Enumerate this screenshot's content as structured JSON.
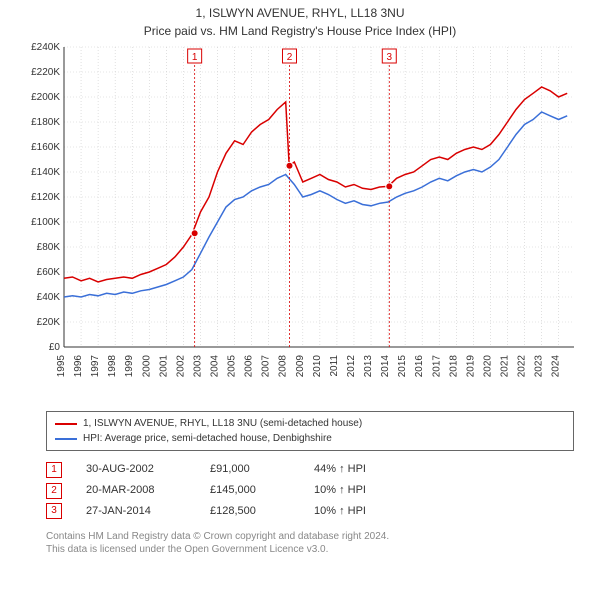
{
  "title": "1, ISLWYN AVENUE, RHYL, LL18 3NU",
  "subtitle": "Price paid vs. HM Land Registry's House Price Index (HPI)",
  "chart": {
    "type": "line",
    "background_color": "#ffffff",
    "grid_color": "#cccccc",
    "axis_color": "#333333",
    "y_axis": {
      "min": 0,
      "max": 240000,
      "tick_step": 20000,
      "tick_labels": [
        "£0",
        "£20K",
        "£40K",
        "£60K",
        "£80K",
        "£100K",
        "£120K",
        "£140K",
        "£160K",
        "£180K",
        "£200K",
        "£220K",
        "£240K"
      ]
    },
    "x_axis": {
      "min": 1995,
      "max": 2024,
      "tick_labels": [
        "1995",
        "1996",
        "1997",
        "1998",
        "1999",
        "2000",
        "2001",
        "2002",
        "2003",
        "2004",
        "2005",
        "2006",
        "2007",
        "2008",
        "2009",
        "2010",
        "2011",
        "2012",
        "2013",
        "2014",
        "2015",
        "2016",
        "2017",
        "2018",
        "2019",
        "2020",
        "2021",
        "2022",
        "2023",
        "2024"
      ]
    },
    "series": [
      {
        "name": "1, ISLWYN AVENUE, RHYL, LL18 3NU (semi-detached house)",
        "color": "#d90000",
        "line_width": 1.5,
        "data": [
          [
            1995,
            55000
          ],
          [
            1995.5,
            56000
          ],
          [
            1996,
            53000
          ],
          [
            1996.5,
            55000
          ],
          [
            1997,
            52000
          ],
          [
            1997.5,
            54000
          ],
          [
            1998,
            55000
          ],
          [
            1998.5,
            56000
          ],
          [
            1999,
            55000
          ],
          [
            1999.5,
            58000
          ],
          [
            2000,
            60000
          ],
          [
            2000.5,
            63000
          ],
          [
            2001,
            66000
          ],
          [
            2001.5,
            72000
          ],
          [
            2002,
            80000
          ],
          [
            2002.5,
            90000
          ],
          [
            2003,
            108000
          ],
          [
            2003.5,
            120000
          ],
          [
            2004,
            140000
          ],
          [
            2004.5,
            155000
          ],
          [
            2005,
            165000
          ],
          [
            2005.5,
            162000
          ],
          [
            2006,
            172000
          ],
          [
            2006.5,
            178000
          ],
          [
            2007,
            182000
          ],
          [
            2007.5,
            190000
          ],
          [
            2008,
            196000
          ],
          [
            2008.2,
            145000
          ],
          [
            2008.5,
            148000
          ],
          [
            2009,
            132000
          ],
          [
            2009.5,
            135000
          ],
          [
            2010,
            138000
          ],
          [
            2010.5,
            134000
          ],
          [
            2011,
            132000
          ],
          [
            2011.5,
            128000
          ],
          [
            2012,
            130000
          ],
          [
            2012.5,
            127000
          ],
          [
            2013,
            126000
          ],
          [
            2013.5,
            128000
          ],
          [
            2014,
            128500
          ],
          [
            2014.5,
            135000
          ],
          [
            2015,
            138000
          ],
          [
            2015.5,
            140000
          ],
          [
            2016,
            145000
          ],
          [
            2016.5,
            150000
          ],
          [
            2017,
            152000
          ],
          [
            2017.5,
            150000
          ],
          [
            2018,
            155000
          ],
          [
            2018.5,
            158000
          ],
          [
            2019,
            160000
          ],
          [
            2019.5,
            158000
          ],
          [
            2020,
            162000
          ],
          [
            2020.5,
            170000
          ],
          [
            2021,
            180000
          ],
          [
            2021.5,
            190000
          ],
          [
            2022,
            198000
          ],
          [
            2022.5,
            203000
          ],
          [
            2023,
            208000
          ],
          [
            2023.5,
            205000
          ],
          [
            2024,
            200000
          ],
          [
            2024.5,
            203000
          ]
        ]
      },
      {
        "name": "HPI: Average price, semi-detached house, Denbighshire",
        "color": "#3a6fd8",
        "line_width": 1.5,
        "data": [
          [
            1995,
            40000
          ],
          [
            1995.5,
            41000
          ],
          [
            1996,
            40000
          ],
          [
            1996.5,
            42000
          ],
          [
            1997,
            41000
          ],
          [
            1997.5,
            43000
          ],
          [
            1998,
            42000
          ],
          [
            1998.5,
            44000
          ],
          [
            1999,
            43000
          ],
          [
            1999.5,
            45000
          ],
          [
            2000,
            46000
          ],
          [
            2000.5,
            48000
          ],
          [
            2001,
            50000
          ],
          [
            2001.5,
            53000
          ],
          [
            2002,
            56000
          ],
          [
            2002.5,
            62000
          ],
          [
            2003,
            75000
          ],
          [
            2003.5,
            88000
          ],
          [
            2004,
            100000
          ],
          [
            2004.5,
            112000
          ],
          [
            2005,
            118000
          ],
          [
            2005.5,
            120000
          ],
          [
            2006,
            125000
          ],
          [
            2006.5,
            128000
          ],
          [
            2007,
            130000
          ],
          [
            2007.5,
            135000
          ],
          [
            2008,
            138000
          ],
          [
            2008.5,
            130000
          ],
          [
            2009,
            120000
          ],
          [
            2009.5,
            122000
          ],
          [
            2010,
            125000
          ],
          [
            2010.5,
            122000
          ],
          [
            2011,
            118000
          ],
          [
            2011.5,
            115000
          ],
          [
            2012,
            117000
          ],
          [
            2012.5,
            114000
          ],
          [
            2013,
            113000
          ],
          [
            2013.5,
            115000
          ],
          [
            2014,
            116000
          ],
          [
            2014.5,
            120000
          ],
          [
            2015,
            123000
          ],
          [
            2015.5,
            125000
          ],
          [
            2016,
            128000
          ],
          [
            2016.5,
            132000
          ],
          [
            2017,
            135000
          ],
          [
            2017.5,
            133000
          ],
          [
            2018,
            137000
          ],
          [
            2018.5,
            140000
          ],
          [
            2019,
            142000
          ],
          [
            2019.5,
            140000
          ],
          [
            2020,
            144000
          ],
          [
            2020.5,
            150000
          ],
          [
            2021,
            160000
          ],
          [
            2021.5,
            170000
          ],
          [
            2022,
            178000
          ],
          [
            2022.5,
            182000
          ],
          [
            2023,
            188000
          ],
          [
            2023.5,
            185000
          ],
          [
            2024,
            182000
          ],
          [
            2024.5,
            185000
          ]
        ]
      }
    ],
    "markers": [
      {
        "n": "1",
        "x": 2002.66,
        "y": 91000,
        "line_color": "#d90000"
      },
      {
        "n": "2",
        "x": 2008.22,
        "y": 145000,
        "line_color": "#d90000"
      },
      {
        "n": "3",
        "x": 2014.07,
        "y": 128500,
        "line_color": "#d90000"
      }
    ],
    "marker_badge": {
      "border_color": "#d90000",
      "text_color": "#d90000",
      "bg": "#ffffff",
      "size": 14,
      "fontsize": 10
    },
    "fontsize_axis": 10
  },
  "legend": {
    "items": [
      {
        "color": "#d90000",
        "label": "1, ISLWYN AVENUE, RHYL, LL18 3NU (semi-detached house)"
      },
      {
        "color": "#3a6fd8",
        "label": "HPI: Average price, semi-detached house, Denbighshire"
      }
    ]
  },
  "sales": [
    {
      "n": "1",
      "date": "30-AUG-2002",
      "price": "£91,000",
      "delta": "44% ↑ HPI"
    },
    {
      "n": "2",
      "date": "20-MAR-2008",
      "price": "£145,000",
      "delta": "10% ↑ HPI"
    },
    {
      "n": "3",
      "date": "27-JAN-2014",
      "price": "£128,500",
      "delta": "10% ↑ HPI"
    }
  ],
  "attribution": {
    "line1": "Contains HM Land Registry data © Crown copyright and database right 2024.",
    "line2": "This data is licensed under the Open Government Licence v3.0."
  }
}
